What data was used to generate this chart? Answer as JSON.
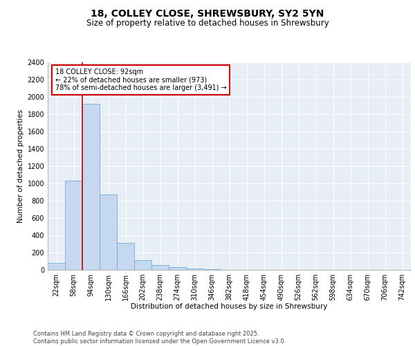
{
  "title_line1": "18, COLLEY CLOSE, SHREWSBURY, SY2 5YN",
  "title_line2": "Size of property relative to detached houses in Shrewsbury",
  "xlabel": "Distribution of detached houses by size in Shrewsbury",
  "ylabel": "Number of detached properties",
  "bar_color": "#c5d8f0",
  "bar_edge_color": "#6baed6",
  "background_color": "#e8eef6",
  "grid_color": "#ffffff",
  "categories": [
    "22sqm",
    "58sqm",
    "94sqm",
    "130sqm",
    "166sqm",
    "202sqm",
    "238sqm",
    "274sqm",
    "310sqm",
    "346sqm",
    "382sqm",
    "418sqm",
    "454sqm",
    "490sqm",
    "526sqm",
    "562sqm",
    "598sqm",
    "634sqm",
    "670sqm",
    "706sqm",
    "742sqm"
  ],
  "values": [
    80,
    1030,
    1920,
    870,
    310,
    110,
    55,
    35,
    20,
    10,
    0,
    0,
    0,
    0,
    0,
    0,
    0,
    0,
    0,
    0,
    0
  ],
  "ylim": [
    0,
    2400
  ],
  "yticks": [
    0,
    200,
    400,
    600,
    800,
    1000,
    1200,
    1400,
    1600,
    1800,
    2000,
    2200,
    2400
  ],
  "red_line_index": 2,
  "annotation_title": "18 COLLEY CLOSE: 92sqm",
  "annotation_line1": "← 22% of detached houses are smaller (973)",
  "annotation_line2": "78% of semi-detached houses are larger (3,491) →",
  "annotation_box_color": "#ffffff",
  "annotation_border_color": "#cc0000",
  "red_line_color": "#cc0000",
  "footer_line1": "Contains HM Land Registry data © Crown copyright and database right 2025.",
  "footer_line2": "Contains public sector information licensed under the Open Government Licence v3.0.",
  "title_fontsize": 10,
  "subtitle_fontsize": 8.5,
  "axis_label_fontsize": 7.5,
  "tick_fontsize": 7,
  "annotation_fontsize": 7,
  "footer_fontsize": 6
}
